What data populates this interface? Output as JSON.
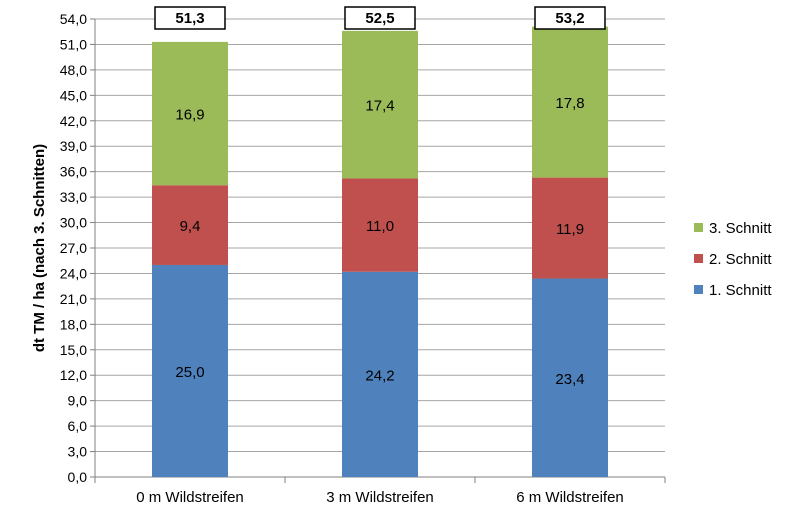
{
  "chart_data": {
    "type": "bar",
    "stacked": true,
    "categories": [
      "0 m Wildstreifen",
      "3 m Wildstreifen",
      "6 m Wildstreifen"
    ],
    "series": [
      {
        "name": "1. Schnitt",
        "values": [
          25.0,
          24.2,
          23.4
        ],
        "labels": [
          "25,0",
          "24,2",
          "23,4"
        ],
        "color": "#4F81BD"
      },
      {
        "name": "2. Schnitt",
        "values": [
          9.4,
          11.0,
          11.9
        ],
        "labels": [
          "9,4",
          "11,0",
          "11,9"
        ],
        "color": "#C0504D"
      },
      {
        "name": "3. Schnitt",
        "values": [
          16.9,
          17.4,
          17.8
        ],
        "labels": [
          "16,9",
          "17,4",
          "17,8"
        ],
        "color": "#9BBB59"
      }
    ],
    "totals": [
      51.3,
      52.5,
      53.2
    ],
    "total_labels": [
      "51,3",
      "52,5",
      "53,2"
    ],
    "ylabel": "dt TM / ha (nach 3. Schnitten)",
    "xlabel": "",
    "ylim": [
      0,
      54
    ],
    "yticks": [
      "0,0",
      "3,0",
      "6,0",
      "9,0",
      "12,0",
      "15,0",
      "18,0",
      "21,0",
      "24,0",
      "27,0",
      "30,0",
      "33,0",
      "36,0",
      "39,0",
      "42,0",
      "45,0",
      "48,0",
      "51,0",
      "54,0"
    ],
    "grid": true,
    "legend_position": "right",
    "legend_order": [
      "3. Schnitt",
      "2. Schnitt",
      "1. Schnitt"
    ]
  }
}
